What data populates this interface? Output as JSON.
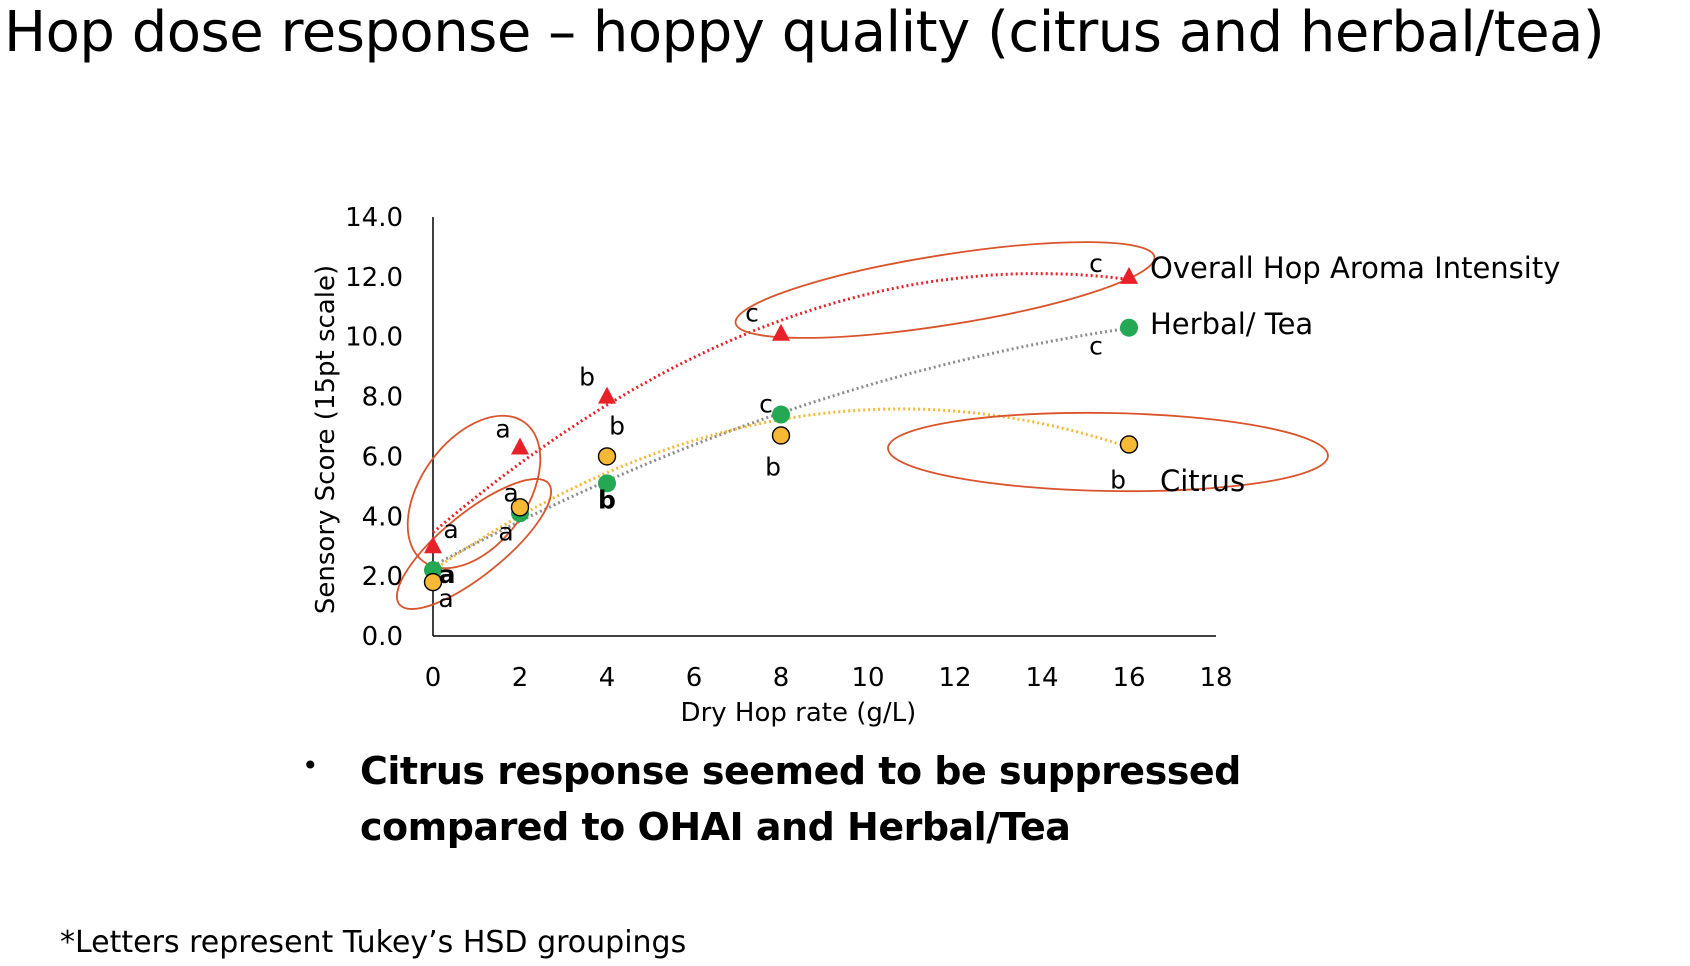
{
  "title": "Hop dose response – hoppy quality (citrus and herbal/tea)",
  "bullet": "Citrus response seemed to be suppressed compared to OHAI and Herbal/Tea",
  "footnote": "*Letters represent Tukey’s HSD groupings",
  "chart_data": {
    "type": "scatter",
    "xlabel": "Dry Hop rate (g/L)",
    "ylabel": "Sensory Score (15pt scale)",
    "xlim": [
      0,
      18
    ],
    "ylim": [
      0,
      14
    ],
    "x_ticks": [
      0,
      2,
      4,
      6,
      8,
      10,
      12,
      14,
      16,
      18
    ],
    "x_tick_labels": [
      "0",
      "2",
      "4",
      "6",
      "8",
      "10",
      "12",
      "14",
      "16",
      "18"
    ],
    "y_ticks": [
      0,
      2,
      4,
      6,
      8,
      10,
      12,
      14
    ],
    "y_tick_labels": [
      "0.0",
      "2.0",
      "4.0",
      "6.0",
      "8.0",
      "10.0",
      "12.0",
      "14.0"
    ],
    "grid": false,
    "series": [
      {
        "name": "Overall Hop Aroma Intensity",
        "marker": "triangle",
        "color": "#e8202a",
        "trend_color": "#e8202a",
        "x": [
          0,
          2,
          4,
          8,
          16
        ],
        "y": [
          3.0,
          6.3,
          8.0,
          10.1,
          12.0
        ],
        "groups": [
          "a",
          "a",
          "b",
          "c",
          "c"
        ]
      },
      {
        "name": "Herbal/ Tea",
        "marker": "circle",
        "color": "#24a854",
        "trend_color": "#8c8c8c",
        "x": [
          0,
          2,
          4,
          8,
          16
        ],
        "y": [
          2.2,
          4.1,
          5.1,
          7.4,
          10.3
        ],
        "groups": [
          "a",
          "a",
          "b",
          "c",
          "c"
        ]
      },
      {
        "name": "Citrus",
        "marker": "circle",
        "color": "#f5b935",
        "trend_color": "#f5b935",
        "x": [
          0,
          2,
          4,
          8,
          16
        ],
        "y": [
          1.8,
          4.3,
          6.0,
          6.7,
          6.4
        ],
        "groups": [
          "a",
          "a",
          "b",
          "b",
          "b"
        ]
      }
    ],
    "annotations": [
      "a",
      "a",
      "a",
      "a",
      "a",
      "a",
      "a",
      "b",
      "b",
      "b",
      "c",
      "c",
      "c",
      "b",
      "b"
    ]
  }
}
